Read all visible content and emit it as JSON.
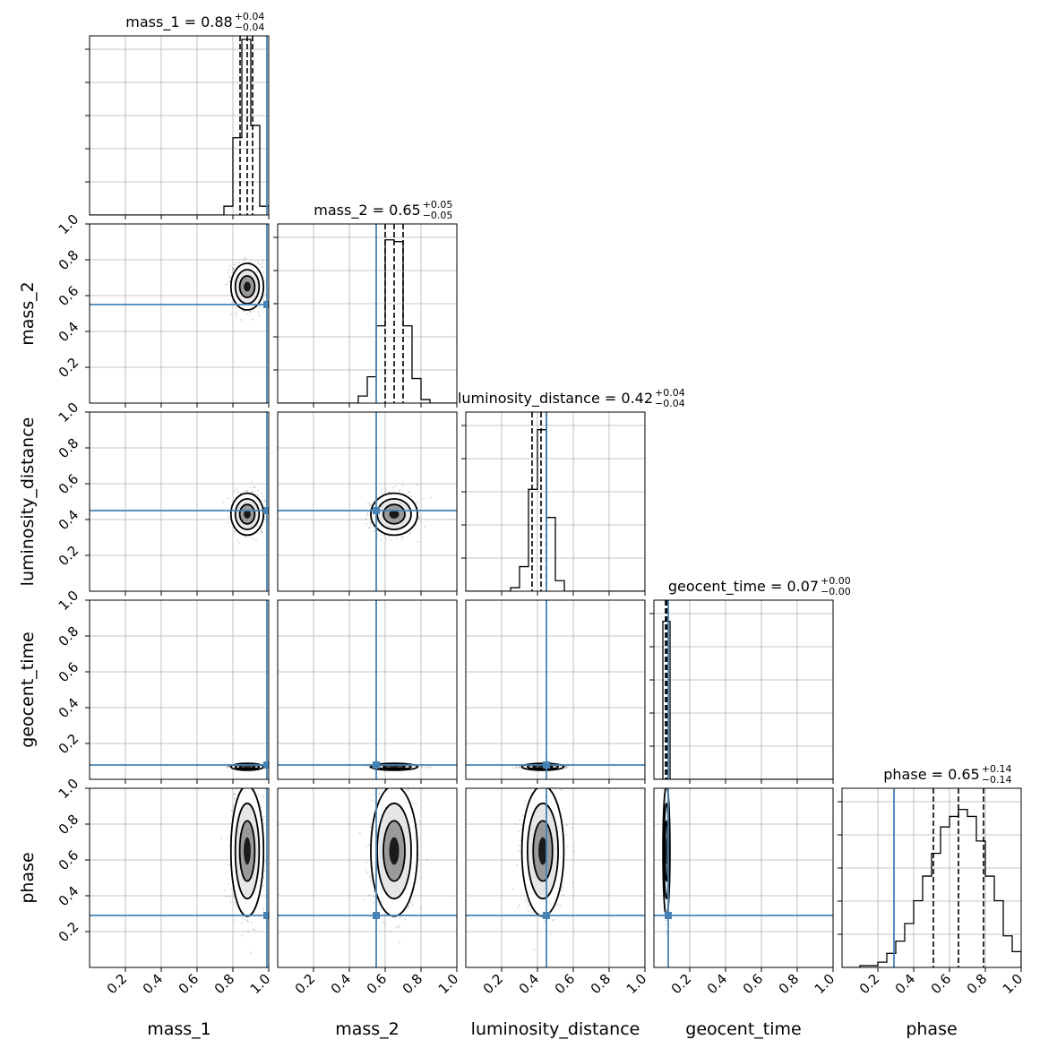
{
  "chart_data": {
    "type": "corner",
    "parameters": [
      "mass_1",
      "mass_2",
      "luminosity_distance",
      "geocent_time",
      "phase"
    ],
    "titles": [
      {
        "param": "mass_1",
        "median": "0.88",
        "plus": "+0.04",
        "minus": "−0.04"
      },
      {
        "param": "mass_2",
        "median": "0.65",
        "plus": "+0.05",
        "minus": "−0.05"
      },
      {
        "param": "luminosity_distance",
        "median": "0.42",
        "plus": "+0.04",
        "minus": "−0.04"
      },
      {
        "param": "geocent_time",
        "median": "0.07",
        "plus": "+0.00",
        "minus": "−0.00"
      },
      {
        "param": "phase",
        "median": "0.65",
        "plus": "+0.14",
        "minus": "−0.14"
      }
    ],
    "axis_range": [
      0,
      1
    ],
    "tick_values": [
      0.2,
      0.4,
      0.6,
      0.8,
      1.0
    ],
    "tick_labels": [
      "0.2",
      "0.4",
      "0.6",
      "0.8",
      "1.0"
    ],
    "grid": true,
    "truth_values": [
      0.99,
      0.55,
      0.45,
      0.08,
      0.29
    ],
    "posterior_mean": [
      0.88,
      0.65,
      0.43,
      0.07,
      0.65
    ],
    "posterior_std": [
      0.035,
      0.05,
      0.045,
      0.004,
      0.14
    ],
    "quantiles": [
      [
        0.84,
        0.88,
        0.91
      ],
      [
        0.6,
        0.65,
        0.7
      ],
      [
        0.37,
        0.42,
        0.45
      ],
      [
        0.065,
        0.07,
        0.075
      ],
      [
        0.51,
        0.65,
        0.79
      ]
    ],
    "histograms": [
      {
        "param": "mass_1",
        "edges": [
          0.75,
          0.8,
          0.85,
          0.9,
          0.95,
          1.0
        ],
        "values": [
          0.05,
          0.44,
          1.0,
          0.51,
          0.05
        ]
      },
      {
        "param": "mass_2",
        "edges": [
          0.45,
          0.5,
          0.55,
          0.6,
          0.65,
          0.7,
          0.75,
          0.8,
          0.85
        ],
        "values": [
          0.04,
          0.15,
          0.44,
          0.93,
          0.92,
          0.44,
          0.14,
          0.02
        ]
      },
      {
        "param": "luminosity_distance",
        "edges": [
          0.25,
          0.3,
          0.35,
          0.4,
          0.45,
          0.5,
          0.55
        ],
        "values": [
          0.02,
          0.14,
          0.58,
          0.92,
          0.42,
          0.06
        ]
      },
      {
        "param": "geocent_time",
        "edges": [
          0.05,
          0.07,
          0.09
        ],
        "values": [
          0.9,
          0.9
        ]
      },
      {
        "param": "phase",
        "edges": [
          0.1,
          0.15,
          0.2,
          0.25,
          0.3,
          0.35,
          0.4,
          0.45,
          0.5,
          0.55,
          0.6,
          0.65,
          0.7,
          0.75,
          0.8,
          0.85,
          0.9,
          0.95,
          1.0
        ],
        "values": [
          0.01,
          0.01,
          0.03,
          0.08,
          0.15,
          0.25,
          0.38,
          0.52,
          0.65,
          0.8,
          0.86,
          0.9,
          0.86,
          0.72,
          0.52,
          0.38,
          0.18,
          0.09
        ]
      }
    ],
    "colors": {
      "truth": "#4682b4",
      "hist": "#000000",
      "grid": "#b0b0b0",
      "density": "#000000"
    }
  }
}
